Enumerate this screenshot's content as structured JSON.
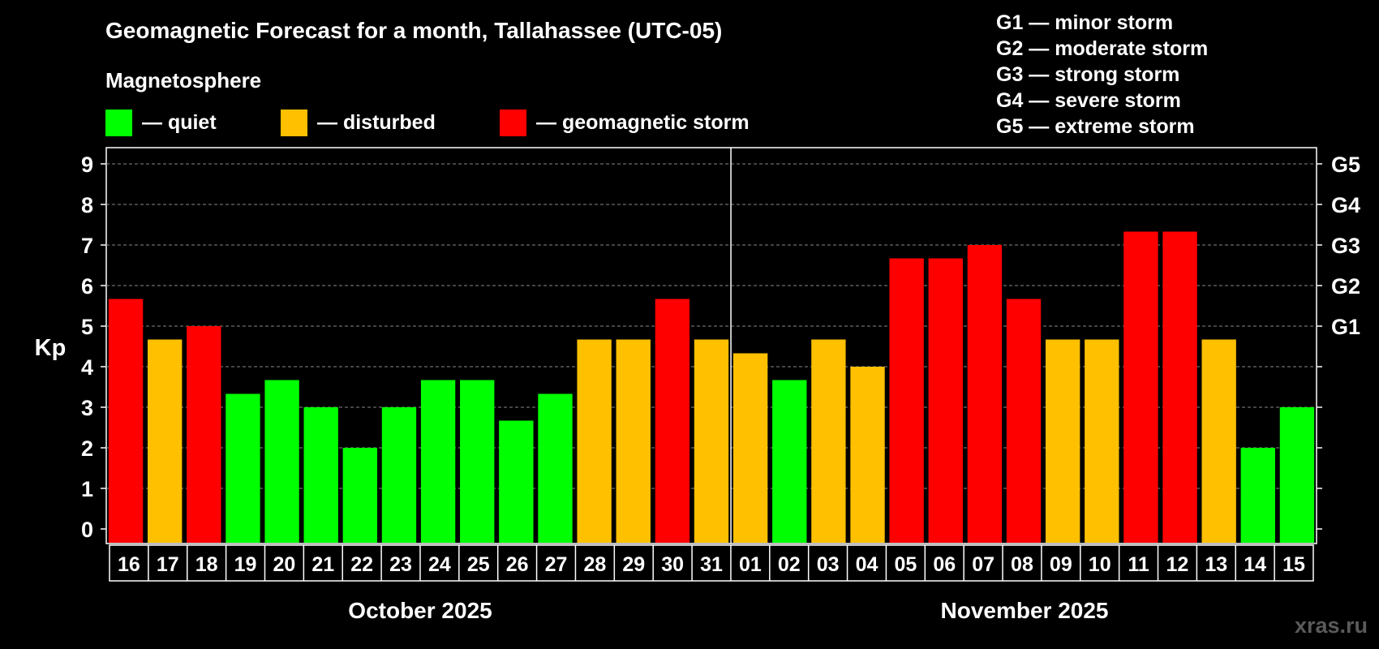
{
  "header": {
    "title": "Geomagnetic Forecast for a month, Tallahassee (UTC-05)",
    "subtitle": "Magnetosphere"
  },
  "legend": {
    "items": [
      {
        "label": "— quiet",
        "color": "#00ff00"
      },
      {
        "label": "— disturbed",
        "color": "#ffc000"
      },
      {
        "label": "— geomagnetic storm",
        "color": "#ff0000"
      }
    ]
  },
  "storm_legend": [
    "G1 — minor storm",
    "G2 — moderate storm",
    "G3 — strong storm",
    "G4 — severe storm",
    "G5 — extreme storm"
  ],
  "watermark": "xras.ru",
  "colors": {
    "quiet": "#00ff00",
    "disturbed": "#ffc000",
    "storm": "#ff0000"
  },
  "chart_data": {
    "type": "bar",
    "title": "Geomagnetic Forecast for a month, Tallahassee (UTC-05)",
    "ylabel": "Kp",
    "ylim": [
      0,
      9
    ],
    "yticks": [
      "0",
      "1",
      "2",
      "3",
      "4",
      "5",
      "6",
      "7",
      "8",
      "9"
    ],
    "right_axis": [
      {
        "label": "G1",
        "kp": 5
      },
      {
        "label": "G2",
        "kp": 6
      },
      {
        "label": "G3",
        "kp": 7
      },
      {
        "label": "G4",
        "kp": 8
      },
      {
        "label": "G5",
        "kp": 9
      }
    ],
    "months": [
      {
        "label": "October 2025",
        "days": 16
      },
      {
        "label": "November 2025",
        "days": 15
      }
    ],
    "categories": [
      "16",
      "17",
      "18",
      "19",
      "20",
      "21",
      "22",
      "23",
      "24",
      "25",
      "26",
      "27",
      "28",
      "29",
      "30",
      "31",
      "01",
      "02",
      "03",
      "04",
      "05",
      "06",
      "07",
      "08",
      "09",
      "10",
      "11",
      "12",
      "13",
      "14",
      "15"
    ],
    "values": [
      5.67,
      4.67,
      5.0,
      3.33,
      3.67,
      3.0,
      2.0,
      3.0,
      3.67,
      3.67,
      2.67,
      3.33,
      4.67,
      4.67,
      5.67,
      4.67,
      4.33,
      3.67,
      4.67,
      4.0,
      6.67,
      6.67,
      7.0,
      5.67,
      4.67,
      4.67,
      7.33,
      7.33,
      4.67,
      2.0,
      3.0
    ],
    "levels": [
      "storm",
      "disturbed",
      "storm",
      "quiet",
      "quiet",
      "quiet",
      "quiet",
      "quiet",
      "quiet",
      "quiet",
      "quiet",
      "quiet",
      "disturbed",
      "disturbed",
      "storm",
      "disturbed",
      "disturbed",
      "quiet",
      "disturbed",
      "disturbed",
      "storm",
      "storm",
      "storm",
      "storm",
      "disturbed",
      "disturbed",
      "storm",
      "storm",
      "disturbed",
      "quiet",
      "quiet"
    ]
  }
}
